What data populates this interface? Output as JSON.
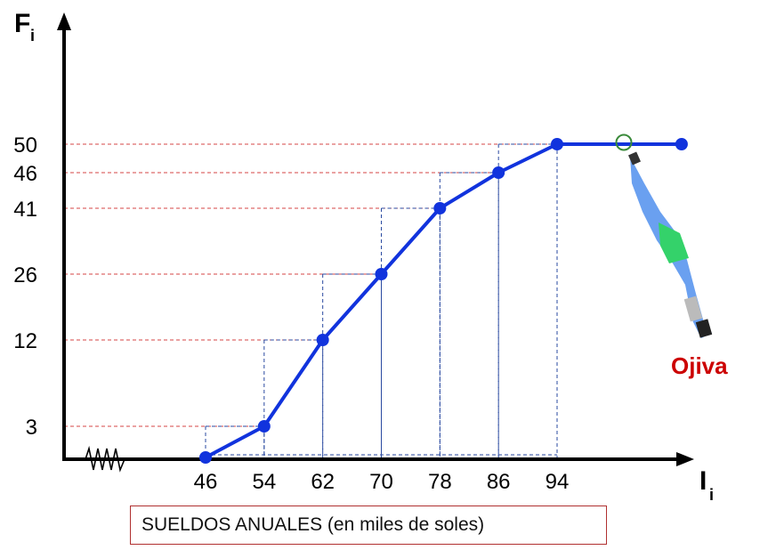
{
  "chart_data": {
    "type": "line",
    "title": "",
    "x_axis_name": "I",
    "x_axis_sub": "i",
    "y_axis_name": "F",
    "y_axis_sub": "i",
    "xlabel": "SUELDOS ANUALES (en miles de soles)",
    "x_ticks": [
      46,
      54,
      62,
      70,
      78,
      86,
      94
    ],
    "y_ticks": [
      3,
      12,
      26,
      41,
      46,
      50
    ],
    "points": [
      {
        "x": 46,
        "y": 0
      },
      {
        "x": 54,
        "y": 3
      },
      {
        "x": 62,
        "y": 12
      },
      {
        "x": 70,
        "y": 26
      },
      {
        "x": 78,
        "y": 41
      },
      {
        "x": 86,
        "y": 46
      },
      {
        "x": 94,
        "y": 50
      },
      {
        "x": 111,
        "y": 50
      }
    ],
    "annotation": "Ojiva",
    "colors": {
      "line": "#1133dd",
      "guide_h": "#d64545",
      "guide_v": "#2a4aa0",
      "annotation": "#cc0000"
    },
    "axis_break": true,
    "grid": false
  }
}
